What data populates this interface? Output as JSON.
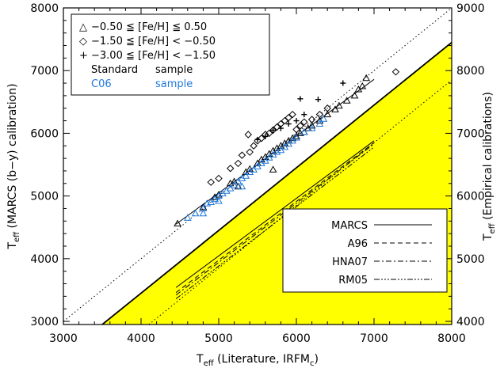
{
  "chart_data": {
    "type": "scatter",
    "xlabel": "Teff (Literature, IRFMc)",
    "xlabel_parts": {
      "main": "T",
      "sub": "eff",
      "rest": " (Literature, IRFM",
      "rest_sub": "c",
      "close": ")"
    },
    "ylabel": "Teff (MARCS (b-y) calibration)",
    "ylabel_parts": {
      "main": "T",
      "sub": "eff",
      "rest": " (MARCS (b−y) calibration)"
    },
    "y2label": "Teff (Empirical calibrations)",
    "y2label_parts": {
      "main": "T",
      "sub": "eff",
      "rest": " (Empirical calibrations)"
    },
    "xlim": [
      3000,
      8000
    ],
    "ylim": [
      2950,
      8000
    ],
    "y2lim": [
      3950,
      9000
    ],
    "xticks": [
      "3000",
      "4000",
      "5000",
      "6000",
      "7000",
      "8000"
    ],
    "yticks": [
      "3000",
      "4000",
      "5000",
      "6000",
      "7000",
      "8000"
    ],
    "y2ticks": [
      "4000",
      "5000",
      "6000",
      "7000",
      "8000",
      "9000"
    ],
    "legend_top": {
      "position": "top-left",
      "entries": [
        {
          "symbol": "△",
          "text": "−0.50   ≦ [Fe/H] ≦   0.50"
        },
        {
          "symbol": "◇",
          "text": "−1.50   ≦ [Fe/H] <  −0.50"
        },
        {
          "symbol": "+",
          "text": "−3.00   ≦ [Fe/H] <  −1.50"
        }
      ],
      "samples": [
        {
          "name": "Standard",
          "word": "sample",
          "color": "#000000"
        },
        {
          "name": "C06",
          "word": "sample",
          "color": "#1e78dc"
        }
      ]
    },
    "legend_bottom": {
      "position": "bottom-right",
      "entries": [
        {
          "label": "MARCS",
          "dash": ""
        },
        {
          "label": "A96",
          "dash": "6,4"
        },
        {
          "label": "HNA07",
          "dash": "7,3,2,3"
        },
        {
          "label": "RM05",
          "dash": "7,2,2,2,2,2,2,2"
        }
      ]
    },
    "fill_color": "#ffff00",
    "series": [
      {
        "name": "one-to-one reference",
        "style": "dotted",
        "x": [
          3000,
          8000
        ],
        "y": [
          3000,
          8000
        ]
      },
      {
        "name": "MARCS",
        "axis": "right",
        "style": "solid",
        "x": [
          3500,
          8000
        ],
        "y": [
          3950,
          8450
        ]
      },
      {
        "name": "shifted reference",
        "axis": "right",
        "style": "dotted",
        "x": [
          4100,
          8000
        ],
        "y": [
          3950,
          7850
        ]
      },
      {
        "name": "fit line",
        "style": "solid",
        "x": [
          4450,
          7000
        ],
        "y": [
          4550,
          6860
        ]
      },
      {
        "name": "MARCS",
        "axis": "right",
        "style": "solid",
        "x": [
          4450,
          7000
        ],
        "y": [
          4540,
          6880
        ]
      },
      {
        "name": "A96",
        "axis": "right",
        "style": "dashed",
        "x": [
          4450,
          7000
        ],
        "y": [
          4460,
          6850
        ]
      },
      {
        "name": "HNA07",
        "axis": "right",
        "style": "dashdot",
        "x": [
          4450,
          7000
        ],
        "y": [
          4420,
          6830
        ]
      },
      {
        "name": "RM05",
        "axis": "right",
        "style": "dashdotdot",
        "x": [
          4450,
          7000
        ],
        "y": [
          4360,
          6780
        ]
      },
      {
        "name": "Standard metal-rich",
        "marker": "triangle",
        "color": "#000000",
        "x": [
          4470,
          4800,
          5000,
          5150,
          5200,
          5350,
          5400,
          5500,
          5550,
          5600,
          5650,
          5700,
          5750,
          5800,
          5850,
          5900,
          5950,
          6000,
          6050,
          6100,
          6150,
          6200,
          6300,
          6400,
          6500,
          6550,
          6650,
          6750,
          6800,
          6850,
          6900,
          5700,
          5250,
          4950
        ],
        "y": [
          4560,
          4820,
          5020,
          5200,
          5230,
          5380,
          5430,
          5520,
          5580,
          5620,
          5670,
          5720,
          5760,
          5800,
          5840,
          5880,
          5920,
          5950,
          6000,
          6020,
          6080,
          6120,
          6200,
          6300,
          6380,
          6440,
          6520,
          6600,
          6700,
          6750,
          6880,
          5420,
          5150,
          4980
        ]
      },
      {
        "name": "Standard intermediate",
        "marker": "diamond",
        "color": "#000000",
        "x": [
          4900,
          5000,
          5150,
          5250,
          5300,
          5400,
          5450,
          5500,
          5550,
          5600,
          5650,
          5700,
          5750,
          5800,
          5850,
          5900,
          5950,
          6000,
          6050,
          6100,
          6200,
          6300,
          6400,
          7280,
          5380
        ],
        "y": [
          5220,
          5280,
          5440,
          5520,
          5650,
          5700,
          5800,
          5880,
          5920,
          5980,
          6000,
          6050,
          6100,
          6150,
          6200,
          6250,
          6300,
          6060,
          6120,
          6180,
          6220,
          6300,
          6400,
          6980,
          5980
        ]
      },
      {
        "name": "Standard metal-poor",
        "marker": "plus",
        "color": "#000000",
        "x": [
          5500,
          5600,
          5700,
          5800,
          5900,
          6000,
          6050,
          6100,
          6280,
          6600
        ],
        "y": [
          5900,
          5950,
          6050,
          6080,
          6150,
          6200,
          6550,
          6300,
          6540,
          6800
        ]
      },
      {
        "name": "C06 sample",
        "marker": "triangle",
        "color": "#1e78dc",
        "x": [
          4600,
          4700,
          4800,
          4850,
          4900,
          4950,
          5000,
          5050,
          5100,
          5150,
          5200,
          5250,
          5300,
          5350,
          5400,
          5450,
          5500,
          5550,
          5600,
          5650,
          5700,
          5750,
          5800,
          5850,
          5900,
          5950,
          6000,
          6100,
          6200,
          6300,
          6350,
          5300,
          5000,
          4800
        ],
        "y": [
          4650,
          4720,
          4800,
          4880,
          4900,
          4950,
          5000,
          5040,
          5080,
          5120,
          5170,
          5230,
          5280,
          5320,
          5380,
          5420,
          5470,
          5520,
          5560,
          5610,
          5660,
          5700,
          5730,
          5780,
          5830,
          5880,
          5930,
          6020,
          6080,
          6150,
          6230,
          5150,
          4920,
          4720
        ]
      }
    ]
  }
}
